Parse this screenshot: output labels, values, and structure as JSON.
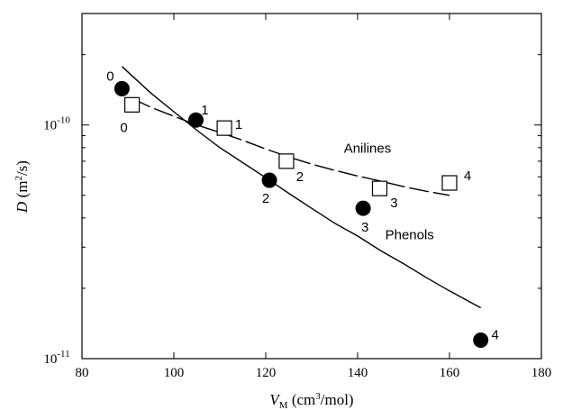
{
  "chart_data": {
    "type": "scatter",
    "x_axis": {
      "label_italic": "V",
      "label_sub": "M",
      "label_rest": " (cm",
      "label_sup": "3",
      "label_end": "/mol)",
      "range": [
        80,
        180
      ],
      "ticks": [
        80,
        100,
        120,
        140,
        160,
        180
      ]
    },
    "y_axis": {
      "label_italic": "D",
      "label_rest": " (m",
      "label_sup": "2",
      "label_end": "/s)",
      "scale": "log",
      "range": [
        1e-11,
        3e-10
      ],
      "labeled_ticks": [
        {
          "value": 1e-10,
          "base": "10",
          "exp": "-10"
        },
        {
          "value": 1e-11,
          "base": "10",
          "exp": "-11"
        }
      ],
      "minor_ticks": [
        2e-11,
        3e-11,
        4e-11,
        5e-11,
        6e-11,
        7e-11,
        8e-11,
        9e-11,
        2e-10
      ]
    },
    "grid": false,
    "series": [
      {
        "name": "Phenols",
        "marker": "filled-circle",
        "points": [
          {
            "x": 88.7,
            "y": 1.43e-10,
            "label": "0"
          },
          {
            "x": 104.8,
            "y": 1.05e-10,
            "label": "1"
          },
          {
            "x": 120.8,
            "y": 5.8e-11,
            "label": "2"
          },
          {
            "x": 141.2,
            "y": 4.4e-11,
            "label": "3"
          },
          {
            "x": 166.8,
            "y": 1.2e-11,
            "label": "4"
          }
        ],
        "fit": {
          "style": "solid",
          "points": [
            [
              88.7,
              1.78e-10
            ],
            [
              95,
              1.37e-10
            ],
            [
              100,
              1.14e-10
            ],
            [
              105,
              9.5e-11
            ],
            [
              110,
              8e-11
            ],
            [
              115,
              6.9e-11
            ],
            [
              120,
              5.95e-11
            ],
            [
              125,
              5.1e-11
            ],
            [
              130,
              4.4e-11
            ],
            [
              135,
              3.8e-11
            ],
            [
              140,
              3.35e-11
            ],
            [
              145,
              2.9e-11
            ],
            [
              150,
              2.55e-11
            ],
            [
              155,
              2.22e-11
            ],
            [
              160,
              1.95e-11
            ],
            [
              166.8,
              1.65e-11
            ]
          ]
        }
      },
      {
        "name": "Anilines",
        "marker": "open-square",
        "points": [
          {
            "x": 90.9,
            "y": 1.22e-10,
            "label": "0"
          },
          {
            "x": 111.0,
            "y": 9.7e-11,
            "label": "1"
          },
          {
            "x": 124.5,
            "y": 7e-11,
            "label": "2"
          },
          {
            "x": 144.8,
            "y": 5.35e-11,
            "label": "3"
          },
          {
            "x": 160.0,
            "y": 5.65e-11,
            "label": "4"
          }
        ],
        "fit": {
          "style": "dashed",
          "points": [
            [
              90.9,
              1.3e-10
            ],
            [
              95,
              1.19e-10
            ],
            [
              100,
              1.09e-10
            ],
            [
              105,
              1e-10
            ],
            [
              110,
              9.3e-11
            ],
            [
              115,
              8.6e-11
            ],
            [
              120,
              7.9e-11
            ],
            [
              125,
              7.3e-11
            ],
            [
              130,
              6.8e-11
            ],
            [
              135,
              6.4e-11
            ],
            [
              140,
              6.05e-11
            ],
            [
              145,
              5.75e-11
            ],
            [
              150,
              5.45e-11
            ],
            [
              155,
              5.2e-11
            ],
            [
              160,
              5e-11
            ]
          ]
        }
      }
    ],
    "annotations": [
      {
        "text": "Anilines",
        "x": 137,
        "y": 7.6e-11
      },
      {
        "text": "Phenols",
        "x": 146,
        "y": 3.25e-11
      }
    ]
  }
}
